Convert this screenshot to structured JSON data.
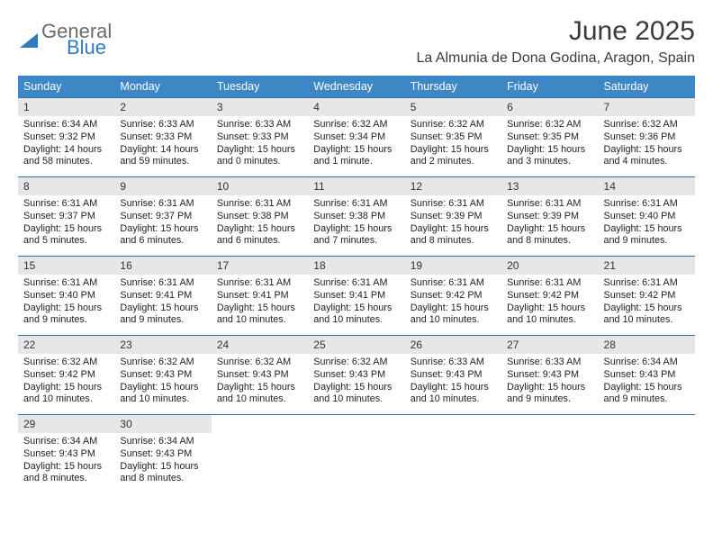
{
  "brand": {
    "line1": "General",
    "line2": "Blue"
  },
  "title": "June 2025",
  "location": "La Almunia de Dona Godina, Aragon, Spain",
  "colors": {
    "header_bg": "#3d87c7",
    "header_text": "#ffffff",
    "row_divider": "#2f6fa8",
    "daynum_bg": "#e7e7e7",
    "text": "#222222",
    "logo_gray": "#6b6b6b",
    "logo_blue": "#2f7bbf"
  },
  "weekdays": [
    "Sunday",
    "Monday",
    "Tuesday",
    "Wednesday",
    "Thursday",
    "Friday",
    "Saturday"
  ],
  "cell_labels": {
    "sunrise_prefix": "Sunrise: ",
    "sunset_prefix": "Sunset: ",
    "daylight_prefix": "Daylight: "
  },
  "days": [
    {
      "n": 1,
      "sunrise": "6:34 AM",
      "sunset": "9:32 PM",
      "daylight": "14 hours and 58 minutes."
    },
    {
      "n": 2,
      "sunrise": "6:33 AM",
      "sunset": "9:33 PM",
      "daylight": "14 hours and 59 minutes."
    },
    {
      "n": 3,
      "sunrise": "6:33 AM",
      "sunset": "9:33 PM",
      "daylight": "15 hours and 0 minutes."
    },
    {
      "n": 4,
      "sunrise": "6:32 AM",
      "sunset": "9:34 PM",
      "daylight": "15 hours and 1 minute."
    },
    {
      "n": 5,
      "sunrise": "6:32 AM",
      "sunset": "9:35 PM",
      "daylight": "15 hours and 2 minutes."
    },
    {
      "n": 6,
      "sunrise": "6:32 AM",
      "sunset": "9:35 PM",
      "daylight": "15 hours and 3 minutes."
    },
    {
      "n": 7,
      "sunrise": "6:32 AM",
      "sunset": "9:36 PM",
      "daylight": "15 hours and 4 minutes."
    },
    {
      "n": 8,
      "sunrise": "6:31 AM",
      "sunset": "9:37 PM",
      "daylight": "15 hours and 5 minutes."
    },
    {
      "n": 9,
      "sunrise": "6:31 AM",
      "sunset": "9:37 PM",
      "daylight": "15 hours and 6 minutes."
    },
    {
      "n": 10,
      "sunrise": "6:31 AM",
      "sunset": "9:38 PM",
      "daylight": "15 hours and 6 minutes."
    },
    {
      "n": 11,
      "sunrise": "6:31 AM",
      "sunset": "9:38 PM",
      "daylight": "15 hours and 7 minutes."
    },
    {
      "n": 12,
      "sunrise": "6:31 AM",
      "sunset": "9:39 PM",
      "daylight": "15 hours and 8 minutes."
    },
    {
      "n": 13,
      "sunrise": "6:31 AM",
      "sunset": "9:39 PM",
      "daylight": "15 hours and 8 minutes."
    },
    {
      "n": 14,
      "sunrise": "6:31 AM",
      "sunset": "9:40 PM",
      "daylight": "15 hours and 9 minutes."
    },
    {
      "n": 15,
      "sunrise": "6:31 AM",
      "sunset": "9:40 PM",
      "daylight": "15 hours and 9 minutes."
    },
    {
      "n": 16,
      "sunrise": "6:31 AM",
      "sunset": "9:41 PM",
      "daylight": "15 hours and 9 minutes."
    },
    {
      "n": 17,
      "sunrise": "6:31 AM",
      "sunset": "9:41 PM",
      "daylight": "15 hours and 10 minutes."
    },
    {
      "n": 18,
      "sunrise": "6:31 AM",
      "sunset": "9:41 PM",
      "daylight": "15 hours and 10 minutes."
    },
    {
      "n": 19,
      "sunrise": "6:31 AM",
      "sunset": "9:42 PM",
      "daylight": "15 hours and 10 minutes."
    },
    {
      "n": 20,
      "sunrise": "6:31 AM",
      "sunset": "9:42 PM",
      "daylight": "15 hours and 10 minutes."
    },
    {
      "n": 21,
      "sunrise": "6:31 AM",
      "sunset": "9:42 PM",
      "daylight": "15 hours and 10 minutes."
    },
    {
      "n": 22,
      "sunrise": "6:32 AM",
      "sunset": "9:42 PM",
      "daylight": "15 hours and 10 minutes."
    },
    {
      "n": 23,
      "sunrise": "6:32 AM",
      "sunset": "9:43 PM",
      "daylight": "15 hours and 10 minutes."
    },
    {
      "n": 24,
      "sunrise": "6:32 AM",
      "sunset": "9:43 PM",
      "daylight": "15 hours and 10 minutes."
    },
    {
      "n": 25,
      "sunrise": "6:32 AM",
      "sunset": "9:43 PM",
      "daylight": "15 hours and 10 minutes."
    },
    {
      "n": 26,
      "sunrise": "6:33 AM",
      "sunset": "9:43 PM",
      "daylight": "15 hours and 10 minutes."
    },
    {
      "n": 27,
      "sunrise": "6:33 AM",
      "sunset": "9:43 PM",
      "daylight": "15 hours and 9 minutes."
    },
    {
      "n": 28,
      "sunrise": "6:34 AM",
      "sunset": "9:43 PM",
      "daylight": "15 hours and 9 minutes."
    },
    {
      "n": 29,
      "sunrise": "6:34 AM",
      "sunset": "9:43 PM",
      "daylight": "15 hours and 8 minutes."
    },
    {
      "n": 30,
      "sunrise": "6:34 AM",
      "sunset": "9:43 PM",
      "daylight": "15 hours and 8 minutes."
    }
  ],
  "layout": {
    "first_weekday_index": 0,
    "total_cells": 35
  }
}
